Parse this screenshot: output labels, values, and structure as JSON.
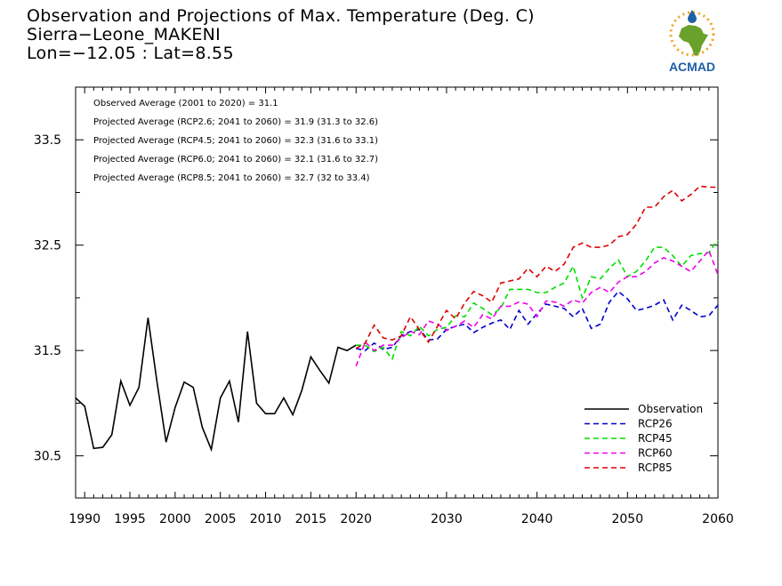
{
  "header": {
    "title": "Observation and Projections of Max. Temperature (Deg. C)",
    "location": "Sierra−Leone_MAKENI",
    "coords": "Lon=−12.05 : Lat=8.55"
  },
  "logo": {
    "text": "ACMAD",
    "icon": "africa-map-sun-logo"
  },
  "colors": {
    "Observation": "#000000",
    "RCP26": "#0000cc",
    "RCP45": "#00dd00",
    "RCP60": "#ee00ee",
    "RCP85": "#dd0000",
    "logo_blue": "#1f5fa8",
    "logo_green": "#6aa12a",
    "logo_orange": "#f2a21c"
  },
  "chart_data": {
    "type": "line",
    "x_range": [
      1989,
      2060
    ],
    "y_range": [
      30.1,
      34.0
    ],
    "x_ticks": [
      1990,
      1995,
      2000,
      2005,
      2010,
      2015,
      2020,
      2030,
      2040,
      2050,
      2060
    ],
    "y_ticks": [
      30.5,
      31.5,
      32.5,
      33.5
    ],
    "annotations": [
      "Observed Average (2001 to 2020) = 31.1",
      "Projected Average (RCP2.6; 2041 to 2060) = 31.9 (31.3 to 32.6)",
      "Projected Average (RCP4.5; 2041 to 2060) = 32.3 (31.6 to 33.1)",
      "Projected Average (RCP6.0; 2041 to 2060) = 32.1 (31.6 to 32.7)",
      "Projected Average (RCP8.5; 2041 to 2060) = 32.7 (32 to 33.4)"
    ],
    "legend_position": "bottom-right",
    "series": [
      {
        "name": "Observation",
        "style": "solid",
        "x": [
          1989,
          1990,
          1991,
          1992,
          1993,
          1994,
          1995,
          1996,
          1997,
          1998,
          1999,
          2000,
          2001,
          2002,
          2003,
          2004,
          2005,
          2006,
          2007,
          2008,
          2009,
          2010,
          2011,
          2012,
          2013,
          2014,
          2015,
          2016,
          2017,
          2018,
          2019,
          2020
        ],
        "y": [
          31.05,
          30.97,
          30.57,
          30.58,
          30.7,
          31.21,
          30.98,
          31.15,
          31.81,
          31.2,
          30.63,
          30.96,
          31.2,
          31.15,
          30.77,
          30.56,
          31.05,
          31.21,
          30.82,
          31.68,
          31.0,
          30.9,
          30.9,
          31.05,
          30.89,
          31.12,
          31.44,
          31.31,
          31.19,
          31.53,
          31.5,
          31.55
        ]
      },
      {
        "name": "RCP26",
        "style": "dashed",
        "x": [
          2020,
          2021,
          2022,
          2023,
          2024,
          2025,
          2026,
          2027,
          2028,
          2029,
          2030,
          2031,
          2032,
          2033,
          2034,
          2035,
          2036,
          2037,
          2038,
          2039,
          2040,
          2041,
          2042,
          2043,
          2044,
          2045,
          2046,
          2047,
          2048,
          2049,
          2050,
          2051,
          2052,
          2053,
          2054,
          2055,
          2056,
          2057,
          2058,
          2059,
          2060
        ],
        "y": [
          31.52,
          31.5,
          31.57,
          31.51,
          31.53,
          31.64,
          31.68,
          31.7,
          31.6,
          31.61,
          31.7,
          31.73,
          31.75,
          31.67,
          31.72,
          31.76,
          31.79,
          31.7,
          31.88,
          31.75,
          31.85,
          31.94,
          31.92,
          31.9,
          31.82,
          31.9,
          31.71,
          31.75,
          31.96,
          32.06,
          31.99,
          31.88,
          31.9,
          31.93,
          31.98,
          31.79,
          31.93,
          31.88,
          31.82,
          31.83,
          31.93
        ]
      },
      {
        "name": "RCP45",
        "style": "dashed",
        "x": [
          2020,
          2021,
          2022,
          2023,
          2024,
          2025,
          2026,
          2027,
          2028,
          2029,
          2030,
          2031,
          2032,
          2033,
          2034,
          2035,
          2036,
          2037,
          2038,
          2039,
          2040,
          2041,
          2042,
          2043,
          2044,
          2045,
          2046,
          2047,
          2048,
          2049,
          2050,
          2051,
          2052,
          2053,
          2054,
          2055,
          2056,
          2057,
          2058,
          2059,
          2060
        ],
        "y": [
          31.55,
          31.55,
          31.49,
          31.53,
          31.42,
          31.68,
          31.64,
          31.73,
          31.64,
          31.7,
          31.72,
          31.83,
          31.82,
          31.95,
          31.9,
          31.84,
          31.9,
          32.08,
          32.08,
          32.08,
          32.05,
          32.05,
          32.1,
          32.14,
          32.3,
          32.0,
          32.2,
          32.18,
          32.28,
          32.36,
          32.2,
          32.25,
          32.35,
          32.48,
          32.48,
          32.4,
          32.3,
          32.4,
          32.42,
          32.43,
          32.55
        ]
      },
      {
        "name": "RCP60",
        "style": "dashed",
        "x": [
          2020,
          2021,
          2022,
          2023,
          2024,
          2025,
          2026,
          2027,
          2028,
          2029,
          2030,
          2031,
          2032,
          2033,
          2034,
          2035,
          2036,
          2037,
          2038,
          2039,
          2040,
          2041,
          2042,
          2043,
          2044,
          2045,
          2046,
          2047,
          2048,
          2049,
          2050,
          2051,
          2052,
          2053,
          2054,
          2055,
          2056,
          2057,
          2058,
          2059,
          2060
        ],
        "y": [
          31.35,
          31.58,
          31.5,
          31.55,
          31.55,
          31.62,
          31.68,
          31.65,
          31.78,
          31.75,
          31.69,
          31.73,
          31.78,
          31.72,
          31.84,
          31.8,
          31.92,
          31.92,
          31.96,
          31.94,
          31.82,
          31.97,
          31.96,
          31.92,
          31.98,
          31.95,
          32.05,
          32.1,
          32.05,
          32.15,
          32.2,
          32.2,
          32.25,
          32.33,
          32.38,
          32.35,
          32.3,
          32.25,
          32.35,
          32.45,
          32.22
        ]
      },
      {
        "name": "RCP85",
        "style": "dashed",
        "x": [
          2020,
          2021,
          2022,
          2023,
          2024,
          2025,
          2026,
          2027,
          2028,
          2029,
          2030,
          2031,
          2032,
          2033,
          2034,
          2035,
          2036,
          2037,
          2038,
          2039,
          2040,
          2041,
          2042,
          2043,
          2044,
          2045,
          2046,
          2047,
          2048,
          2049,
          2050,
          2051,
          2052,
          2053,
          2054,
          2055,
          2056,
          2057,
          2058,
          2059,
          2060
        ],
        "y": [
          31.52,
          31.57,
          31.74,
          31.62,
          31.6,
          31.64,
          31.82,
          31.7,
          31.58,
          31.73,
          31.88,
          31.8,
          31.95,
          32.06,
          32.02,
          31.96,
          32.14,
          32.16,
          32.18,
          32.28,
          32.2,
          32.3,
          32.25,
          32.32,
          32.48,
          32.52,
          32.48,
          32.48,
          32.5,
          32.58,
          32.6,
          32.7,
          32.86,
          32.86,
          32.96,
          33.02,
          32.92,
          32.98,
          33.06,
          33.05,
          33.05
        ]
      }
    ]
  }
}
